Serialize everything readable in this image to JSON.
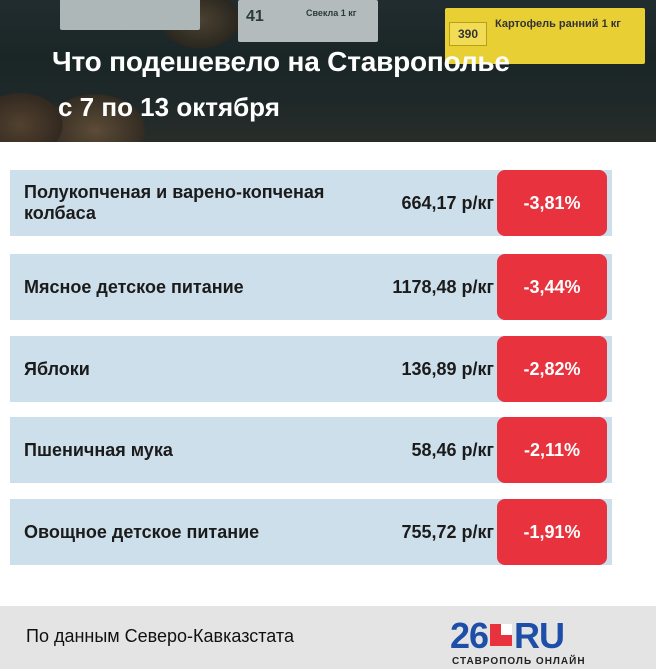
{
  "header": {
    "title": "Что подешевело на Ставрополье",
    "subtitle": "с 7 по 13 октября",
    "price_tags": [
      {
        "number": "41",
        "label": "Свекла 1 кг"
      },
      {
        "number": "390",
        "label": "Картофель ранний 1 кг"
      }
    ]
  },
  "items": [
    {
      "name": "Полукопченая и варено-копченая колбаса",
      "price": "664,17 р/кг",
      "change": "-3,81%"
    },
    {
      "name": "Мясное детское питание",
      "price": "1178,48 р/кг",
      "change": "-3,44%"
    },
    {
      "name": "Яблоки",
      "price": "136,89 р/кг",
      "change": "-2,82%"
    },
    {
      "name": "Пшеничная мука",
      "price": "58,46 р/кг",
      "change": "-2,11%"
    },
    {
      "name": "Овощное детское питание",
      "price": "755,72 р/кг",
      "change": "-1,91%"
    }
  ],
  "footer": {
    "source": "По данным Северо-Кавказстата",
    "logo_number": "26",
    "logo_suffix": "RU",
    "logo_subtitle": "СТАВРОПОЛЬ ОНЛАЙН"
  },
  "colors": {
    "row_background": "#cddfeb",
    "badge_red": "#e8323e",
    "logo_blue": "#1d4fa8",
    "footer_background": "#e4e4e4"
  }
}
